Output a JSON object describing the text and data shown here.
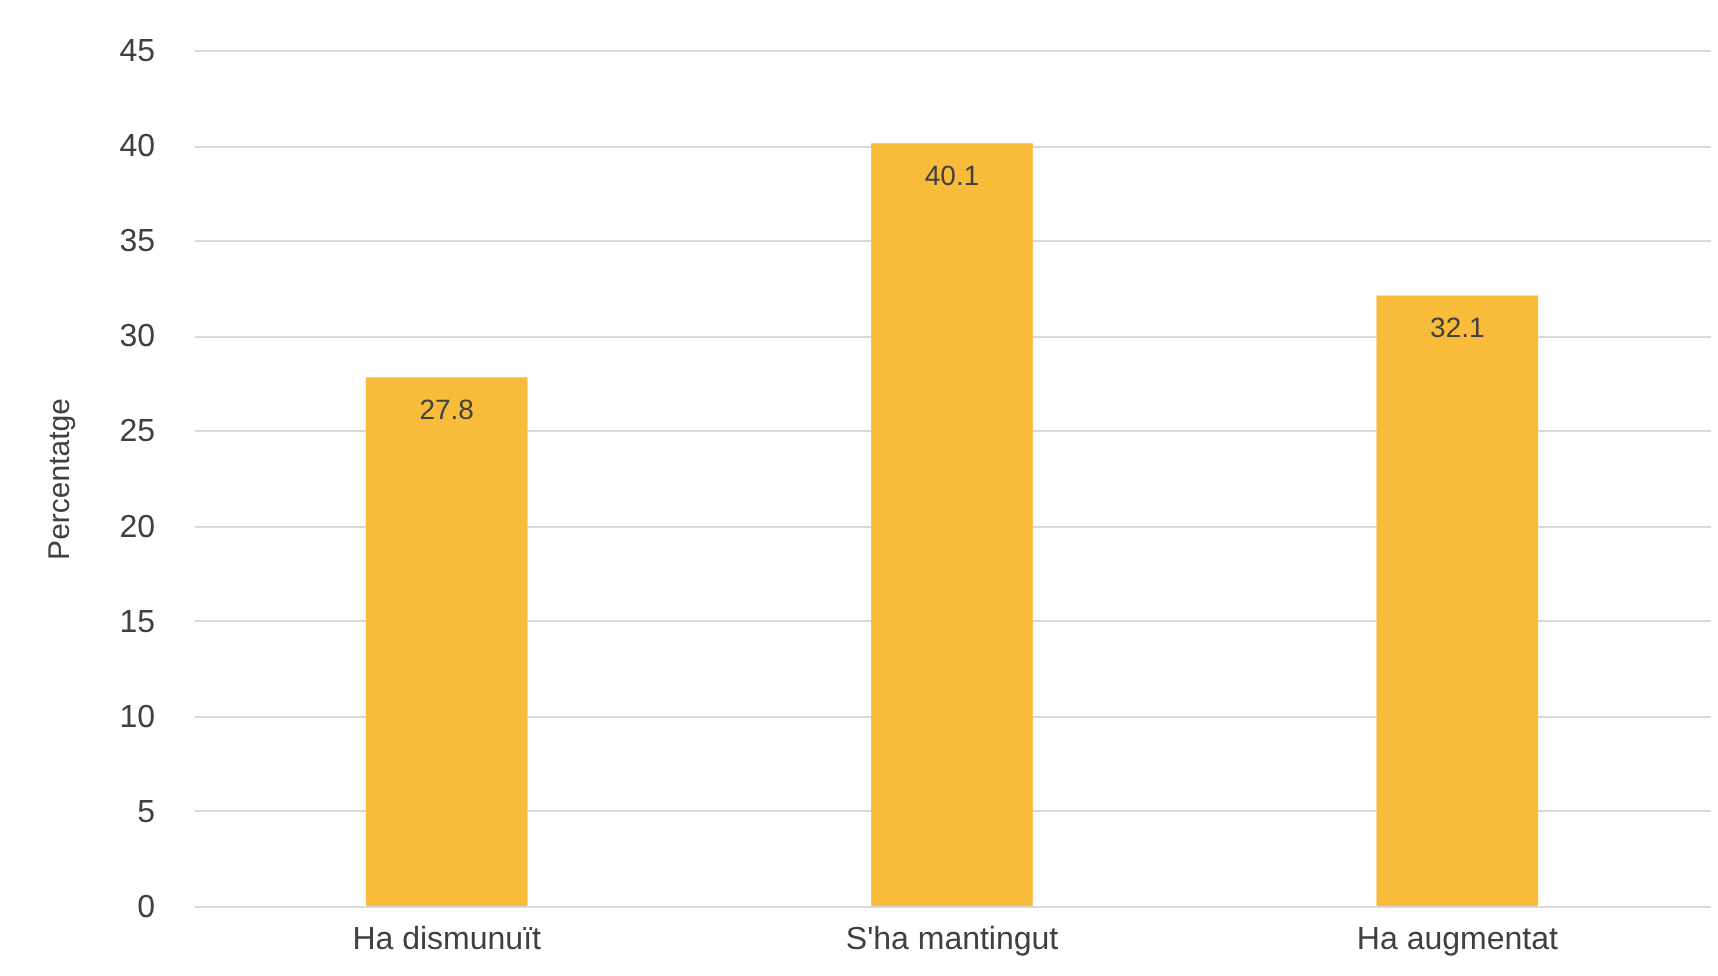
{
  "chart_data": {
    "type": "bar",
    "ylabel": "Percentatge",
    "categories": [
      "Ha dismunuït",
      "S'ha mantingut",
      "Ha augmentat"
    ],
    "series": [
      {
        "color": "#f8bc3a",
        "values": [
          27.8,
          40.1,
          32.1
        ]
      }
    ],
    "ylim": [
      0,
      45
    ],
    "yticks": [
      0,
      5,
      10,
      15,
      20,
      25,
      30,
      35,
      40,
      45
    ],
    "grid": "y",
    "data_labels": true
  }
}
